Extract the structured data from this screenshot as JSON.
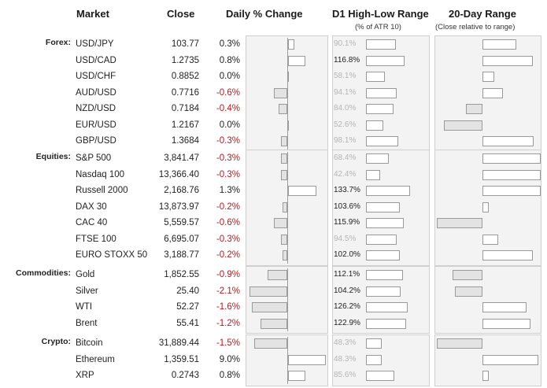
{
  "headers": {
    "market": "Market",
    "close": "Close",
    "daily_change": "Daily % Change",
    "d1_range": "D1 High-Low Range",
    "d1_range_sub": "(% of ATR 10)",
    "range20": "20-Day Range",
    "range20_sub": "(Close relative to range)"
  },
  "groups": [
    {
      "label": "Forex:",
      "rows": [
        {
          "name": "USD/JPY",
          "close": "103.77",
          "change": "0.3%",
          "range": "90.1%",
          "change_val": 0.3,
          "range_val": 90.1,
          "range_faded": true,
          "pos20": 0.78
        },
        {
          "name": "USD/CAD",
          "close": "1.2735",
          "change": "0.8%",
          "range": "116.8%",
          "change_val": 0.8,
          "range_val": 116.8,
          "range_faded": false,
          "pos20": 0.92
        },
        {
          "name": "USD/CHF",
          "close": "0.8852",
          "change": "0.0%",
          "range": "58.1%",
          "change_val": 0.0,
          "range_val": 58.1,
          "range_faded": true,
          "pos20": 0.6
        },
        {
          "name": "AUD/USD",
          "close": "0.7716",
          "change": "-0.6%",
          "range": "94.1%",
          "change_val": -0.6,
          "range_val": 94.1,
          "range_faded": true,
          "pos20": 0.67
        },
        {
          "name": "NZD/USD",
          "close": "0.7184",
          "change": "-0.4%",
          "range": "84.0%",
          "change_val": -0.4,
          "range_val": 84.0,
          "range_faded": true,
          "pos20": 0.36
        },
        {
          "name": "EUR/USD",
          "close": "1.2167",
          "change": "0.0%",
          "range": "52.6%",
          "change_val": 0.0,
          "range_val": 52.6,
          "range_faded": true,
          "pos20": 0.18
        },
        {
          "name": "GBP/USD",
          "close": "1.3684",
          "change": "-0.3%",
          "range": "98.1%",
          "change_val": -0.3,
          "range_val": 98.1,
          "range_faded": true,
          "pos20": 0.93
        }
      ]
    },
    {
      "label": "Equities:",
      "rows": [
        {
          "name": "S&P 500",
          "close": "3,841.47",
          "change": "-0.3%",
          "range": "68.4%",
          "change_val": -0.3,
          "range_val": 68.4,
          "range_faded": true,
          "pos20": 1.0
        },
        {
          "name": "Nasdaq 100",
          "close": "13,366.40",
          "change": "-0.3%",
          "range": "42.4%",
          "change_val": -0.3,
          "range_val": 42.4,
          "range_faded": true,
          "pos20": 1.0
        },
        {
          "name": "Russell 2000",
          "close": "2,168.76",
          "change": "1.3%",
          "range": "133.7%",
          "change_val": 1.3,
          "range_val": 133.7,
          "range_faded": false,
          "pos20": 1.0
        },
        {
          "name": "DAX 30",
          "close": "13,873.97",
          "change": "-0.2%",
          "range": "103.6%",
          "change_val": -0.2,
          "range_val": 103.6,
          "range_faded": false,
          "pos20": 0.55
        },
        {
          "name": "CAC 40",
          "close": "5,559.57",
          "change": "-0.6%",
          "range": "115.9%",
          "change_val": -0.6,
          "range_val": 115.9,
          "range_faded": false,
          "pos20": 0.0
        },
        {
          "name": "FTSE 100",
          "close": "6,695.07",
          "change": "-0.3%",
          "range": "94.5%",
          "change_val": -0.3,
          "range_val": 94.5,
          "range_faded": true,
          "pos20": 0.63
        },
        {
          "name": "EURO STOXX 50",
          "close": "3,188.77",
          "change": "-0.2%",
          "range": "102.0%",
          "change_val": -0.2,
          "range_val": 102.0,
          "range_faded": false,
          "pos20": 0.92
        }
      ]
    },
    {
      "label": "Commodities:",
      "rows": [
        {
          "name": "Gold",
          "close": "1,852.55",
          "change": "-0.9%",
          "range": "112.1%",
          "change_val": -0.9,
          "range_val": 112.1,
          "range_faded": false,
          "pos20": 0.25
        },
        {
          "name": "Silver",
          "close": "25.40",
          "change": "-2.1%",
          "range": "104.2%",
          "change_val": -2.1,
          "range_val": 104.2,
          "range_faded": false,
          "pos20": 0.27
        },
        {
          "name": "WTI",
          "close": "52.27",
          "change": "-1.6%",
          "range": "126.2%",
          "change_val": -1.6,
          "range_val": 126.2,
          "range_faded": false,
          "pos20": 0.87
        },
        {
          "name": "Brent",
          "close": "55.41",
          "change": "-1.2%",
          "range": "122.9%",
          "change_val": -1.2,
          "range_val": 122.9,
          "range_faded": false,
          "pos20": 0.9
        }
      ]
    },
    {
      "label": "Crypto:",
      "rows": [
        {
          "name": "Bitcoin",
          "close": "31,889.44",
          "change": "-1.5%",
          "range": "48.3%",
          "change_val": -1.5,
          "range_val": 48.3,
          "range_faded": true,
          "pos20": 0.12
        },
        {
          "name": "Ethereum",
          "close": "1,359.51",
          "change": "9.0%",
          "range": "48.3%",
          "change_val": 9.0,
          "range_val": 48.3,
          "range_faded": true,
          "pos20": 0.97
        },
        {
          "name": "XRP",
          "close": "0.2743",
          "change": "0.8%",
          "range": "85.6%",
          "change_val": 0.8,
          "range_val": 85.6,
          "range_faded": true,
          "pos20": 0.55
        }
      ]
    }
  ]
}
